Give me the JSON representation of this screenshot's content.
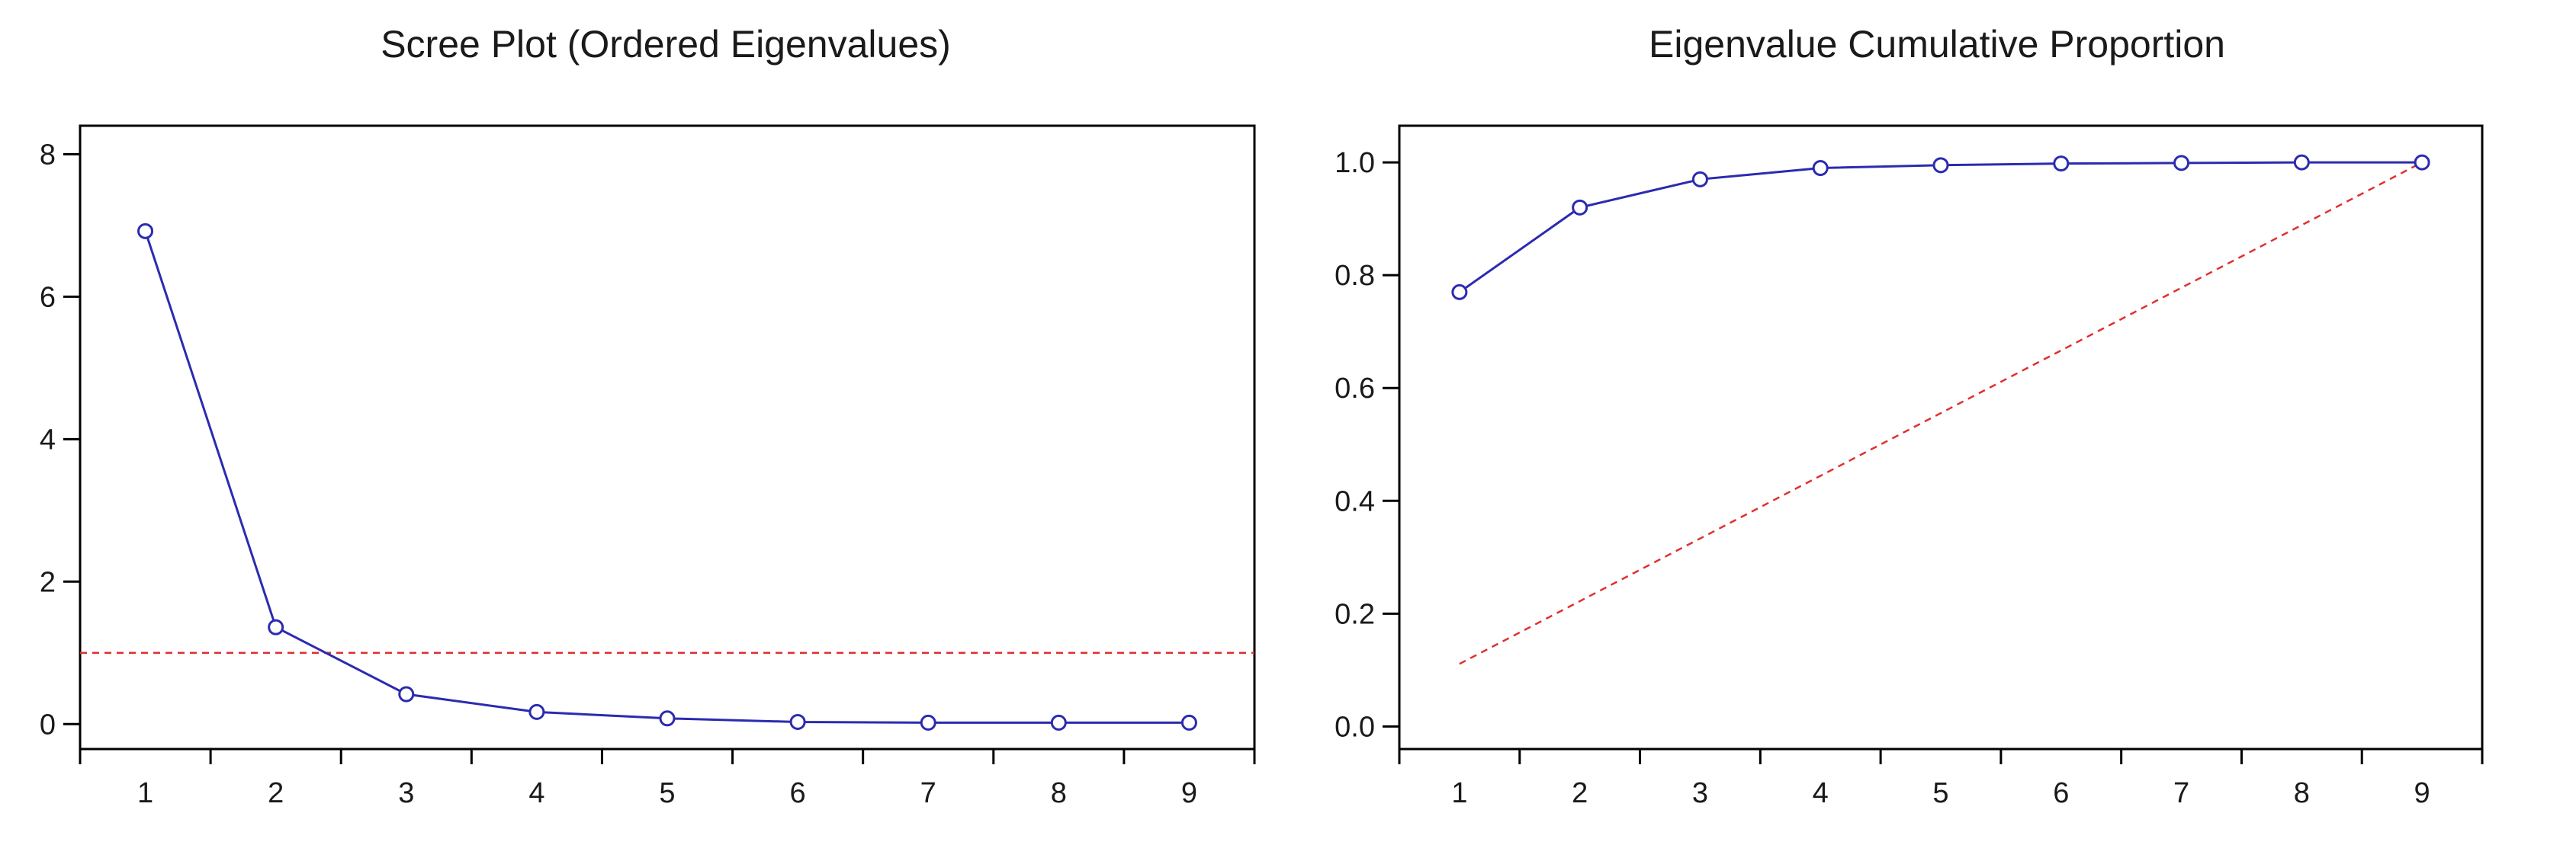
{
  "chart_data": [
    {
      "type": "line",
      "title": "Scree Plot (Ordered Eigenvalues)",
      "xlabel": "",
      "ylabel": "",
      "x": [
        1,
        2,
        3,
        4,
        5,
        6,
        7,
        8,
        9
      ],
      "xlim": [
        0.5,
        9.5
      ],
      "ylim": [
        -0.35,
        8.4
      ],
      "yticks": [
        0,
        2,
        4,
        6,
        8
      ],
      "ytick_labels": [
        "0",
        "2",
        "4",
        "6",
        "8"
      ],
      "xticks": [
        1,
        2,
        3,
        4,
        5,
        6,
        7,
        8,
        9
      ],
      "xtick_labels": [
        "1",
        "2",
        "3",
        "4",
        "5",
        "6",
        "7",
        "8",
        "9"
      ],
      "grid": false,
      "series": [
        {
          "values": [
            6.92,
            1.36,
            0.42,
            0.17,
            0.08,
            0.03,
            0.02,
            0.02,
            0.02
          ],
          "color": "#2b2bb0",
          "style": "solid",
          "markers": "open-circle"
        }
      ],
      "reference_lines": [
        {
          "orientation": "horizontal",
          "y": 1.0,
          "color": "#e03030",
          "style": "dashed"
        }
      ]
    },
    {
      "type": "line",
      "title": "Eigenvalue Cumulative Proportion",
      "xlabel": "",
      "ylabel": "",
      "x": [
        1,
        2,
        3,
        4,
        5,
        6,
        7,
        8,
        9
      ],
      "xlim": [
        0.5,
        9.5
      ],
      "ylim": [
        -0.04,
        1.065
      ],
      "yticks": [
        0.0,
        0.2,
        0.4,
        0.6,
        0.8,
        1.0
      ],
      "ytick_labels": [
        "0.0",
        "0.2",
        "0.4",
        "0.6",
        "0.8",
        "1.0"
      ],
      "xticks": [
        1,
        2,
        3,
        4,
        5,
        6,
        7,
        8,
        9
      ],
      "xtick_labels": [
        "1",
        "2",
        "3",
        "4",
        "5",
        "6",
        "7",
        "8",
        "9"
      ],
      "grid": false,
      "series": [
        {
          "values": [
            0.77,
            0.92,
            0.97,
            0.99,
            0.995,
            0.998,
            0.999,
            1.0,
            1.0
          ],
          "color": "#2b2bb0",
          "style": "solid",
          "markers": "open-circle"
        }
      ],
      "reference_lines": [
        {
          "orientation": "diagonal",
          "from": [
            1,
            0.111
          ],
          "to": [
            9,
            1.0
          ],
          "color": "#e03030",
          "style": "dashed"
        }
      ]
    }
  ]
}
